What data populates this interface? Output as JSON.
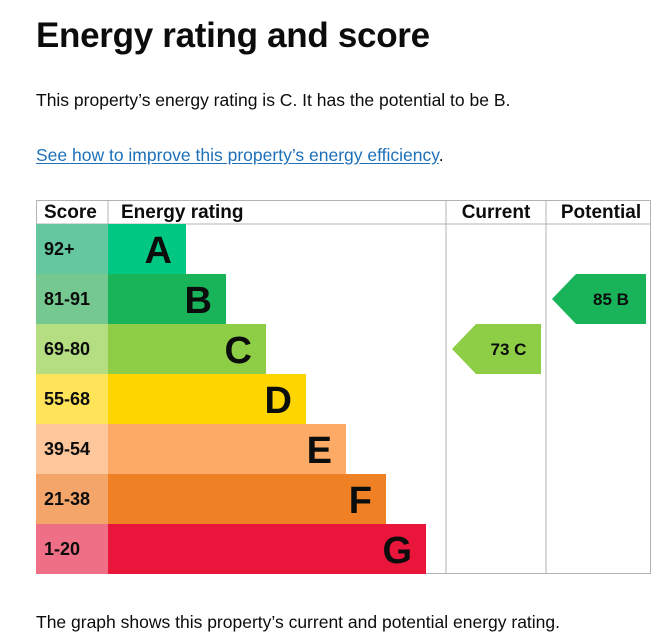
{
  "title": "Energy rating and score",
  "summary": "This property’s energy rating is C. It has the potential to be B.",
  "link_text": "See how to improve this property’s energy efficiency",
  "link_suffix": ".",
  "caption": "The graph shows this property’s current and potential energy rating.",
  "chart_data": {
    "type": "bar",
    "headers": {
      "score": "Score",
      "rating": "Energy rating",
      "current": "Current",
      "potential": "Potential"
    },
    "bands": [
      {
        "letter": "A",
        "range": "92+",
        "color": "#00c781",
        "score_bg": "#64c7a0"
      },
      {
        "letter": "B",
        "range": "81-91",
        "color": "#19b459",
        "score_bg": "#75c88f"
      },
      {
        "letter": "C",
        "range": "69-80",
        "color": "#8dce46",
        "score_bg": "#b5dd82"
      },
      {
        "letter": "D",
        "range": "55-68",
        "color": "#ffd500",
        "score_bg": "#ffe45a"
      },
      {
        "letter": "E",
        "range": "39-54",
        "color": "#fcaa65",
        "score_bg": "#fdc69b"
      },
      {
        "letter": "F",
        "range": "21-38",
        "color": "#ef8023",
        "score_bg": "#f4a56a"
      },
      {
        "letter": "G",
        "range": "1-20",
        "color": "#e9153b",
        "score_bg": "#ef6f86"
      }
    ],
    "current": {
      "score": 73,
      "band": "C",
      "label": "73 C",
      "color": "#8dce46"
    },
    "potential": {
      "score": 85,
      "band": "B",
      "label": "85 B",
      "color": "#19b459"
    }
  }
}
